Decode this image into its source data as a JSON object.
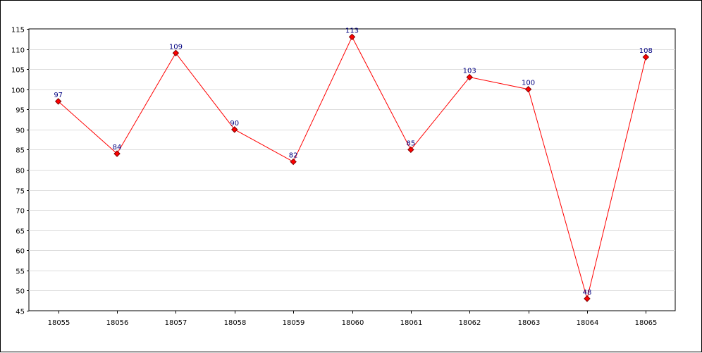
{
  "chart_data": {
    "type": "line",
    "title": "",
    "xlabel": "",
    "ylabel": "",
    "categories": [
      "18055",
      "18056",
      "18057",
      "18058",
      "18059",
      "18060",
      "18061",
      "18062",
      "18063",
      "18064",
      "18065"
    ],
    "series": [
      {
        "values": [
          97,
          84,
          109,
          90,
          82,
          113,
          85,
          103,
          100,
          48,
          108
        ],
        "color": "#ff0000",
        "marker": "diamond",
        "marker_color": "#ff0000",
        "marker_outline": "#800000",
        "data_labels": true,
        "data_label_color": "#000080"
      }
    ],
    "ylim": [
      45,
      115
    ],
    "y_ticks": [
      45,
      50,
      55,
      60,
      65,
      70,
      75,
      80,
      85,
      90,
      95,
      100,
      105,
      110,
      115
    ],
    "grid": "horizontal",
    "grid_color": "#dddddd",
    "legend": "none"
  }
}
